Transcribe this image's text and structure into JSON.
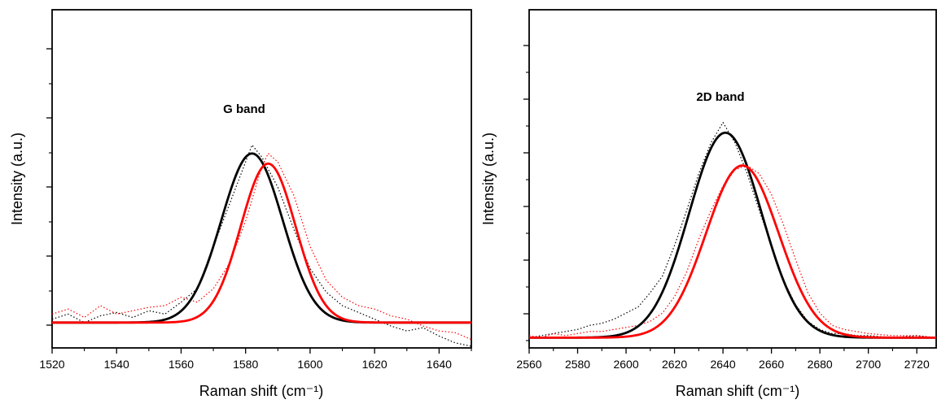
{
  "chart_data": [
    {
      "type": "line",
      "annotation": "G band",
      "xlabel": "Raman shift (cm⁻¹)",
      "ylabel": "Intensity (a.u.)",
      "xlim": [
        1520,
        1650
      ],
      "ylim": [
        -0.15,
        1.85
      ],
      "xticks": [
        1520,
        1540,
        1560,
        1580,
        1600,
        1620,
        1640
      ],
      "y_tick_labels_shown": false,
      "grid": false,
      "legend": "none",
      "series": [
        {
          "color": "#000000",
          "style": "solid",
          "fit": "gaussian",
          "center": 1582,
          "amplitude": 1.0,
          "sigma": 9.5,
          "baseline": 0
        },
        {
          "color": "#ff0000",
          "style": "solid",
          "fit": "gaussian",
          "center": 1587,
          "amplitude": 0.94,
          "sigma": 8.5,
          "baseline": 0
        },
        {
          "color": "#000000",
          "style": "dotted",
          "x": [
            1520,
            1525,
            1530,
            1535,
            1540,
            1545,
            1550,
            1555,
            1560,
            1565,
            1570,
            1575,
            1580,
            1582,
            1585,
            1590,
            1595,
            1600,
            1605,
            1610,
            1615,
            1620,
            1625,
            1630,
            1635,
            1640,
            1645,
            1650
          ],
          "y": [
            0.02,
            0.05,
            0.0,
            0.04,
            0.06,
            0.03,
            0.07,
            0.05,
            0.12,
            0.2,
            0.45,
            0.7,
            0.95,
            1.05,
            0.98,
            0.8,
            0.55,
            0.32,
            0.18,
            0.1,
            0.06,
            0.02,
            -0.02,
            -0.05,
            -0.03,
            -0.08,
            -0.12,
            -0.14
          ]
        },
        {
          "color": "#ff0000",
          "style": "dotted",
          "x": [
            1520,
            1525,
            1530,
            1535,
            1540,
            1545,
            1550,
            1555,
            1560,
            1565,
            1570,
            1575,
            1580,
            1585,
            1587,
            1590,
            1595,
            1600,
            1605,
            1610,
            1615,
            1620,
            1625,
            1630,
            1635,
            1640,
            1645,
            1650
          ],
          "y": [
            0.05,
            0.08,
            0.03,
            0.1,
            0.05,
            0.07,
            0.09,
            0.1,
            0.15,
            0.12,
            0.2,
            0.35,
            0.6,
            0.92,
            1.0,
            0.95,
            0.75,
            0.45,
            0.25,
            0.15,
            0.1,
            0.08,
            0.04,
            0.02,
            -0.02,
            -0.05,
            -0.06,
            -0.1
          ]
        }
      ]
    },
    {
      "type": "line",
      "annotation": "2D band",
      "xlabel": "Raman shift (cm⁻¹)",
      "ylabel": "Intensity (a.u.)",
      "xlim": [
        2560,
        2728
      ],
      "ylim": [
        -0.05,
        1.6
      ],
      "xticks": [
        2560,
        2580,
        2600,
        2620,
        2640,
        2660,
        2680,
        2700,
        2720
      ],
      "y_tick_labels_shown": false,
      "grid": false,
      "legend": "none",
      "series": [
        {
          "color": "#000000",
          "style": "solid",
          "fit": "gaussian",
          "center": 2641,
          "amplitude": 1.0,
          "sigma": 15,
          "baseline": 0
        },
        {
          "color": "#ff0000",
          "style": "solid",
          "fit": "gaussian",
          "center": 2648,
          "amplitude": 0.84,
          "sigma": 15,
          "baseline": 0
        },
        {
          "color": "#000000",
          "style": "dotted",
          "x": [
            2560,
            2565,
            2570,
            2575,
            2580,
            2585,
            2590,
            2595,
            2600,
            2605,
            2610,
            2615,
            2620,
            2625,
            2630,
            2635,
            2640,
            2645,
            2650,
            2655,
            2660,
            2665,
            2670,
            2675,
            2680,
            2685,
            2690,
            2695,
            2700,
            2710,
            2720,
            2728
          ],
          "y": [
            0.0,
            0.01,
            0.02,
            0.03,
            0.04,
            0.06,
            0.07,
            0.09,
            0.12,
            0.15,
            0.22,
            0.3,
            0.45,
            0.62,
            0.8,
            0.95,
            1.05,
            0.95,
            0.8,
            0.62,
            0.45,
            0.28,
            0.16,
            0.08,
            0.04,
            0.02,
            0.02,
            0.01,
            0.01,
            0.0,
            0.01,
            0.0
          ]
        },
        {
          "color": "#ff0000",
          "style": "dotted",
          "x": [
            2560,
            2565,
            2570,
            2575,
            2580,
            2585,
            2590,
            2595,
            2600,
            2605,
            2610,
            2615,
            2620,
            2625,
            2630,
            2635,
            2640,
            2645,
            2650,
            2655,
            2660,
            2665,
            2670,
            2675,
            2680,
            2685,
            2690,
            2695,
            2700,
            2710,
            2720,
            2728
          ],
          "y": [
            0.01,
            0.0,
            0.02,
            0.01,
            0.02,
            0.03,
            0.03,
            0.04,
            0.05,
            0.06,
            0.08,
            0.12,
            0.2,
            0.32,
            0.48,
            0.62,
            0.74,
            0.82,
            0.84,
            0.8,
            0.7,
            0.55,
            0.38,
            0.22,
            0.12,
            0.06,
            0.04,
            0.03,
            0.02,
            0.01,
            0.01,
            0.0
          ]
        }
      ]
    }
  ]
}
